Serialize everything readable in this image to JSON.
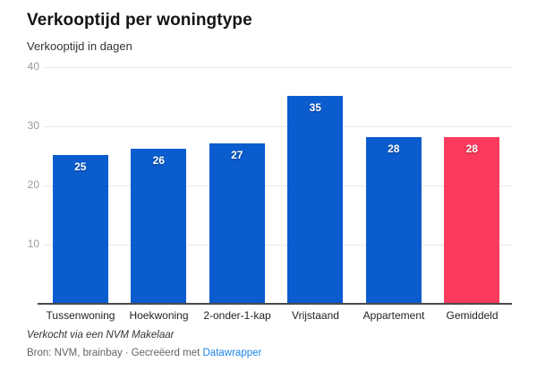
{
  "chart_data": {
    "type": "bar",
    "title": "Verkooptijd per woningtype",
    "subtitle": "Verkooptijd in dagen",
    "categories": [
      "Tussenwoning",
      "Hoekwoning",
      "2-onder-1-kap",
      "Vrijstaand",
      "Appartement",
      "Gemiddeld"
    ],
    "values": [
      25,
      26,
      27,
      35,
      28,
      28
    ],
    "bar_colors": [
      "#0b5cce",
      "#0b5cce",
      "#0b5cce",
      "#0b5cce",
      "#0b5cce",
      "#fb3a5d"
    ],
    "highlighted_category": "Gemiddeld",
    "ylim": [
      0,
      40
    ],
    "yticks": [
      40,
      30,
      20,
      10
    ],
    "grid": "horizontal",
    "legend": "none",
    "value_labels": "inside-top",
    "xlabel": "",
    "ylabel": "Verkooptijd in dagen"
  },
  "footer": {
    "footnote": "Verkocht via een NVM Makelaar",
    "source": "Bron: NVM, brainbay",
    "separator": "·",
    "created_with": "Gecreëerd met",
    "link_label": "Datawrapper"
  },
  "colors": {
    "bar_blue": "#0b5cce",
    "bar_highlight": "#fb3a5d",
    "link_blue": "#1d84e8",
    "gridline": "#e8e8e8",
    "axis_line": "#4a4a4a",
    "tick_label": "#9b9b9b"
  }
}
